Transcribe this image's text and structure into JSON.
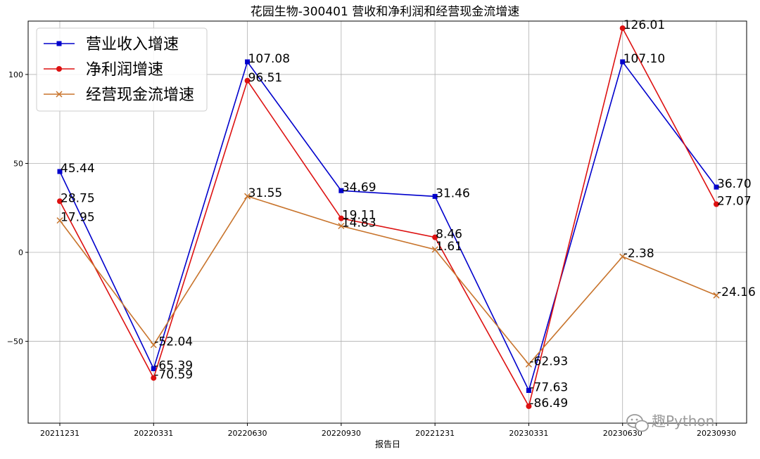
{
  "chart_data": {
    "type": "line",
    "title": "花园生物-300401 营收和净利润和经营现金流增速",
    "xlabel": "报告日",
    "ylabel": "",
    "categories": [
      "20211231",
      "20220331",
      "20220630",
      "20220930",
      "20221231",
      "20230331",
      "20230630",
      "20230930"
    ],
    "ylim": [
      -96,
      130
    ],
    "yticks": [
      -50,
      0,
      50,
      100
    ],
    "grid": true,
    "legend_position": "top-left",
    "series": [
      {
        "name": "营业收入增速",
        "color": "#0000cc",
        "marker": "square",
        "values": [
          45.44,
          -65.39,
          107.08,
          34.69,
          31.46,
          -77.63,
          107.1,
          36.7
        ],
        "labels": [
          "45.44",
          "-65.39",
          "107.08",
          "34.69",
          "31.46",
          "-77.63",
          "107.10",
          "36.70"
        ]
      },
      {
        "name": "净利润增速",
        "color": "#dd1111",
        "marker": "circle",
        "values": [
          28.75,
          -70.59,
          96.51,
          19.11,
          8.46,
          -86.49,
          126.01,
          27.07
        ],
        "labels": [
          "28.75",
          "-70.59",
          "96.51",
          "19.11",
          "8.46",
          "-86.49",
          "126.01",
          "27.07"
        ]
      },
      {
        "name": "经营现金流增速",
        "color": "#c8742c",
        "marker": "x",
        "values": [
          17.95,
          -52.04,
          31.55,
          14.83,
          1.61,
          -62.93,
          -2.38,
          -24.16
        ],
        "labels": [
          "17.95",
          "-52.04",
          "31.55",
          "14.83",
          "1.61",
          "-62.93",
          "-2.38",
          "-24.16"
        ]
      }
    ]
  },
  "watermark": {
    "text": "趣Python",
    "icon": "wechat-icon"
  }
}
